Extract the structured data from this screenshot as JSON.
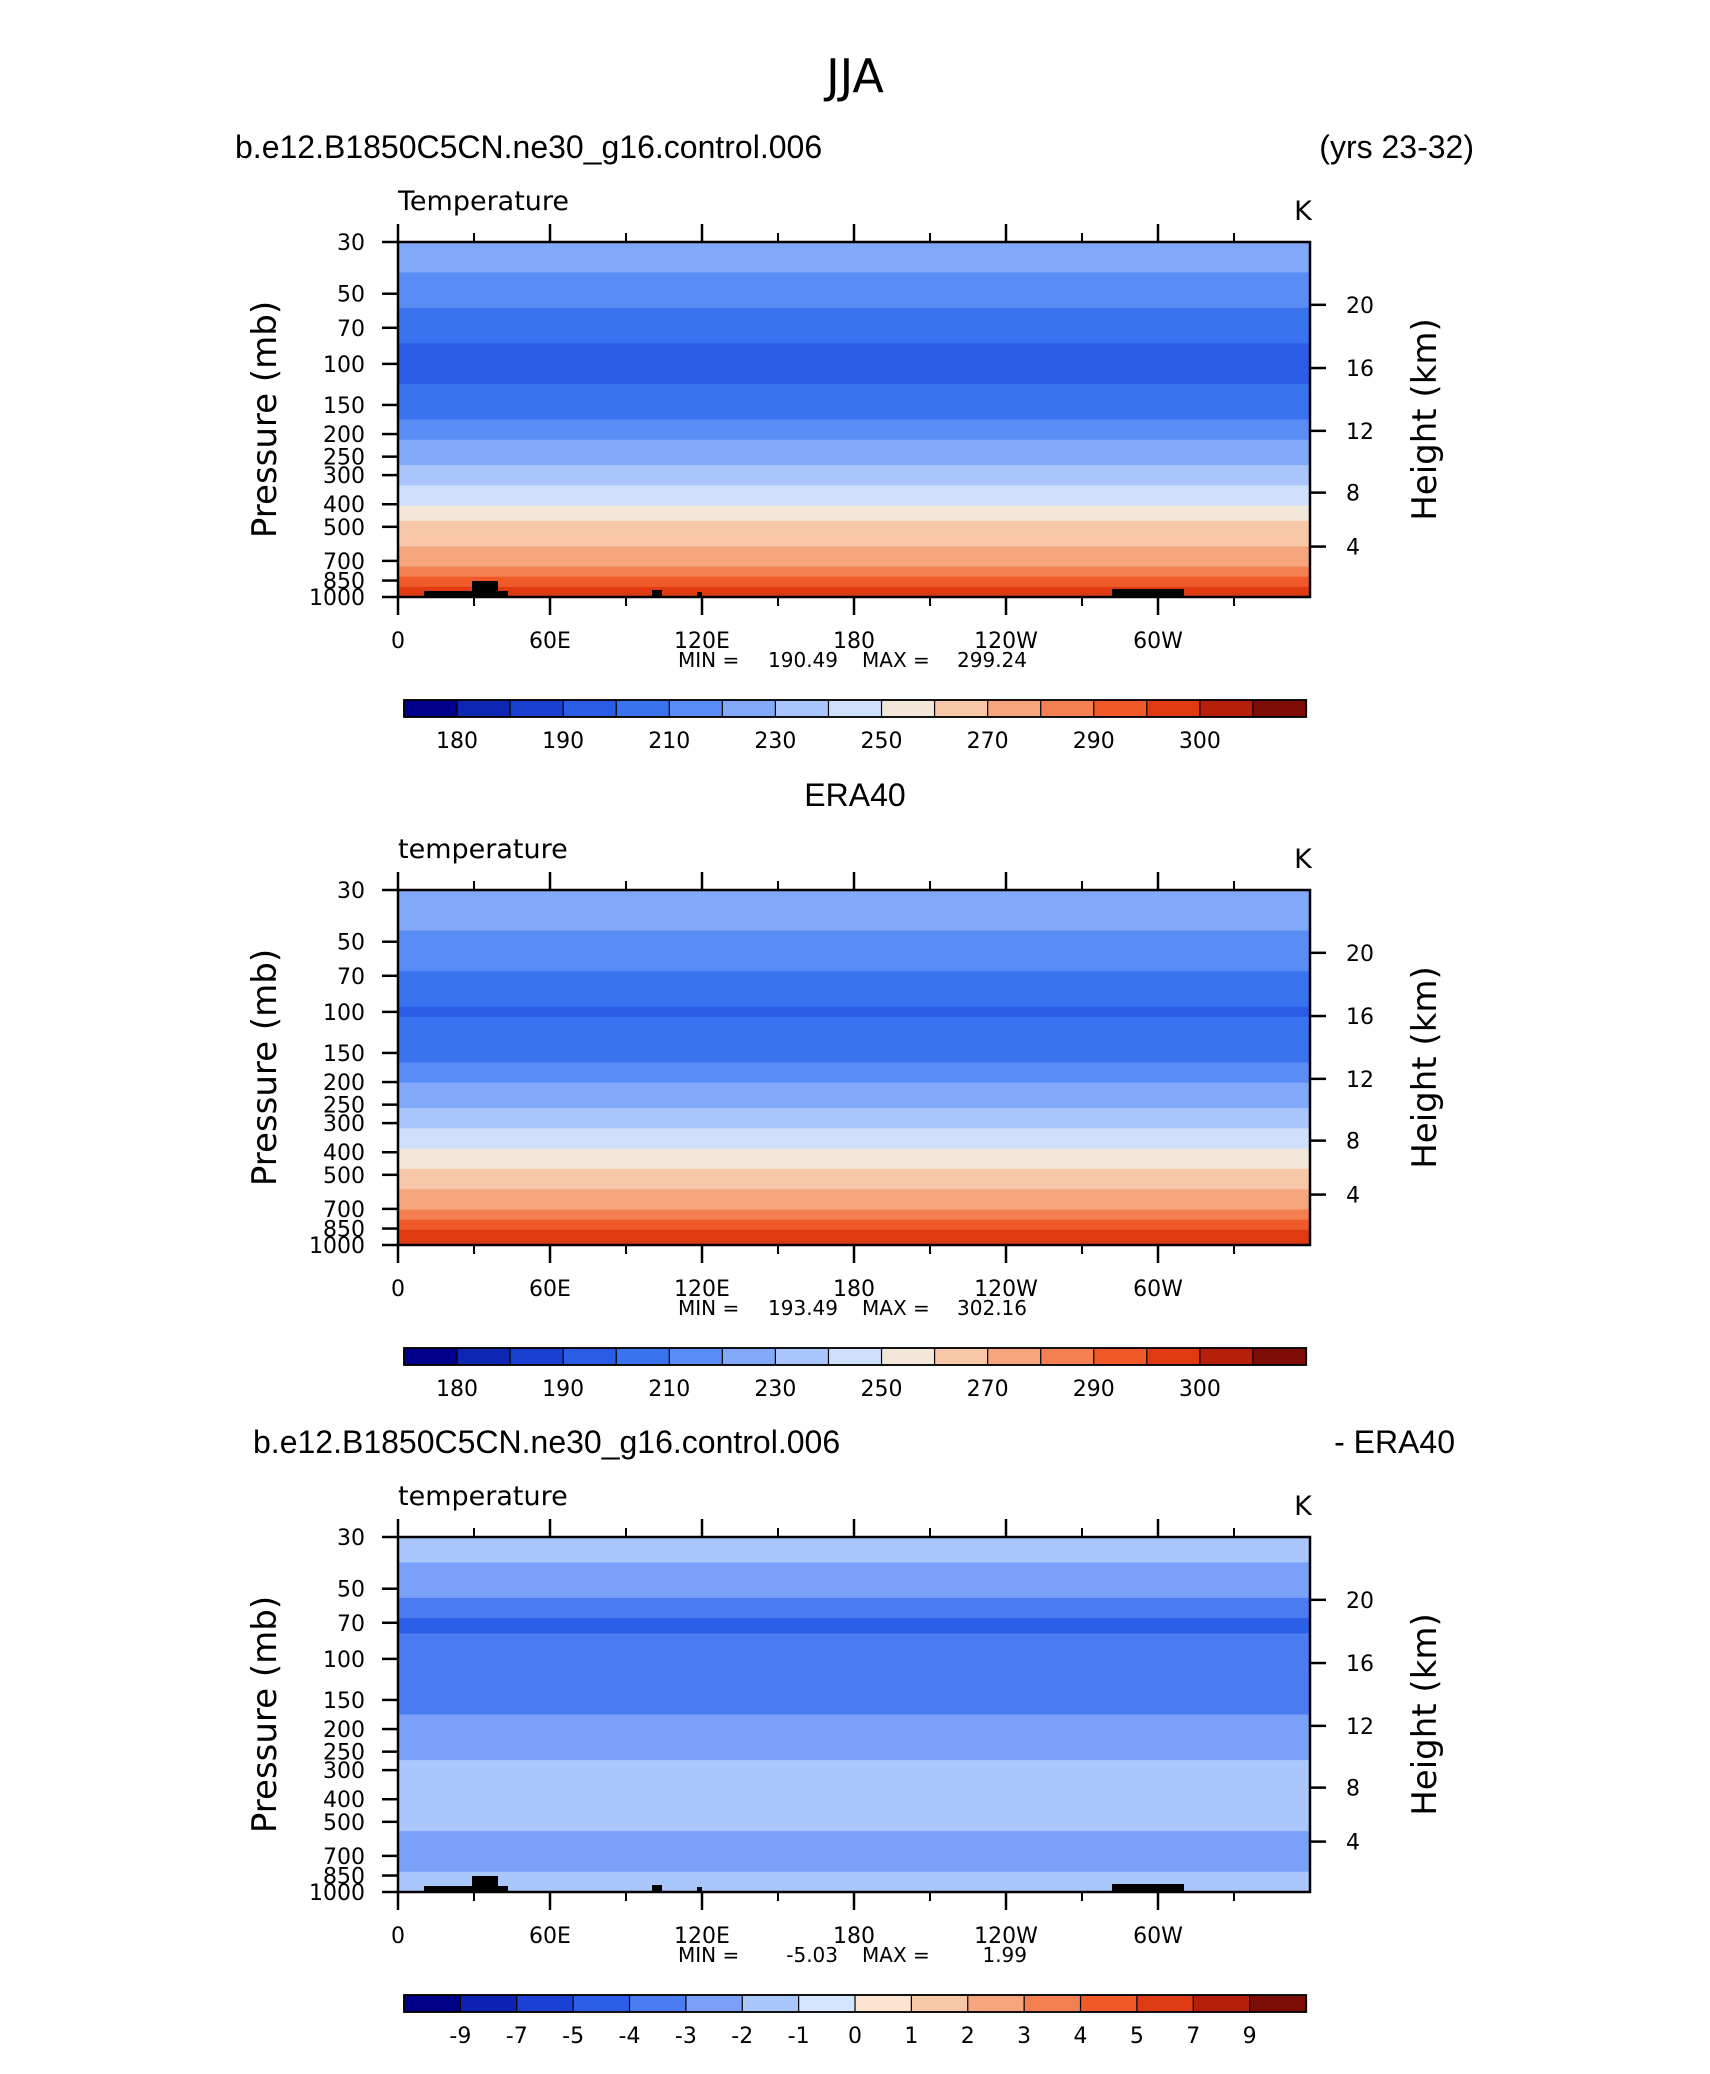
{
  "figure": {
    "title": "JJA"
  },
  "colors": {
    "temperature_levels": [
      "#00008c",
      "#0d26b4",
      "#1a40d2",
      "#2a5ce6",
      "#3a73f0",
      "#5a8cf5",
      "#82a9f9",
      "#a9c5fb",
      "#cfe0fc",
      "#f3e7d9",
      "#f8c7a7",
      "#f6a67f",
      "#f47f50",
      "#f05a28",
      "#e03a13",
      "#b61f0a",
      "#7f0c06"
    ],
    "difference_levels": [
      "#000088",
      "#0b22b3",
      "#1a40d4",
      "#2c5fe8",
      "#4b7cf2",
      "#7aa0f8",
      "#aac7fc",
      "#d4e6fd",
      "#fbe4d1",
      "#f8c7a7",
      "#f6a67f",
      "#f47f50",
      "#ef5a28",
      "#de3a13",
      "#b31f0a",
      "#7c0c06"
    ]
  },
  "panels": [
    {
      "left_title": "b.e12.B1850C5CN.ne30_g16.control.006",
      "right_title": "(yrs 23-32)",
      "center_title": "",
      "field_label": "Temperature",
      "units": "K",
      "ylabel_left": "Pressure  (mb)",
      "ylabel_right": "Height  (km)",
      "min_label": "MIN =",
      "min_value": "190.49",
      "max_label": "MAX =",
      "max_value": "299.24",
      "colorbar_labels": [
        "180",
        "190",
        "210",
        "230",
        "250",
        "270",
        "290",
        "300"
      ]
    },
    {
      "left_title": "",
      "right_title": "",
      "center_title": "ERA40",
      "field_label": "temperature",
      "units": "K",
      "ylabel_left": "Pressure  (mb)",
      "ylabel_right": "Height  (km)",
      "min_label": "MIN =",
      "min_value": "193.49",
      "max_label": "MAX =",
      "max_value": "302.16",
      "colorbar_labels": [
        "180",
        "190",
        "210",
        "230",
        "250",
        "270",
        "290",
        "300"
      ]
    },
    {
      "left_title": "b.e12.B1850C5CN.ne30_g16.control.006",
      "right_title": "- ERA40",
      "center_title": "",
      "field_label": "temperature",
      "units": "K",
      "ylabel_left": "Pressure  (mb)",
      "ylabel_right": "Height  (km)",
      "min_label": "MIN =",
      "min_value": "-5.03",
      "max_label": "MAX =",
      "max_value": "1.99",
      "colorbar_labels": [
        "-9",
        "-7",
        "-5",
        "-4",
        "-3",
        "-2",
        "-1",
        "0",
        "1",
        "2",
        "3",
        "4",
        "5",
        "7",
        "9"
      ]
    }
  ],
  "chart_data": [
    {
      "type": "heatmap",
      "title": "Temperature",
      "xlabel": "",
      "ylabel": "Pressure  (mb)",
      "x_ticks": [
        "0",
        "60E",
        "120E",
        "180",
        "120W",
        "60W"
      ],
      "x_tick_values": [
        0,
        60,
        120,
        180,
        240,
        300
      ],
      "xlim": [
        0,
        360
      ],
      "y_ticks": [
        30,
        50,
        70,
        100,
        150,
        200,
        250,
        300,
        400,
        500,
        700,
        850,
        1000
      ],
      "ylim": [
        1000,
        30
      ],
      "y_scale": "log",
      "y2_ticks": [
        20,
        16,
        12,
        8,
        4
      ],
      "y2_label": "Height  (km)",
      "min": 190.49,
      "max": 299.24,
      "contour_levels": [
        175,
        180,
        185,
        190,
        200,
        210,
        220,
        230,
        240,
        250,
        260,
        270,
        280,
        285,
        290,
        295,
        300
      ],
      "approx_zonal_mean_profile": [
        {
          "pressure": 30,
          "value": 228
        },
        {
          "pressure": 50,
          "value": 215
        },
        {
          "pressure": 70,
          "value": 203
        },
        {
          "pressure": 100,
          "value": 196
        },
        {
          "pressure": 150,
          "value": 205
        },
        {
          "pressure": 200,
          "value": 217
        },
        {
          "pressure": 250,
          "value": 227
        },
        {
          "pressure": 300,
          "value": 236
        },
        {
          "pressure": 400,
          "value": 250
        },
        {
          "pressure": 500,
          "value": 262
        },
        {
          "pressure": 700,
          "value": 277
        },
        {
          "pressure": 850,
          "value": 287
        },
        {
          "pressure": 1000,
          "value": 293
        }
      ]
    },
    {
      "type": "heatmap",
      "title": "temperature",
      "xlabel": "",
      "ylabel": "Pressure  (mb)",
      "x_ticks": [
        "0",
        "60E",
        "120E",
        "180",
        "120W",
        "60W"
      ],
      "x_tick_values": [
        0,
        60,
        120,
        180,
        240,
        300
      ],
      "xlim": [
        0,
        360
      ],
      "y_ticks": [
        30,
        50,
        70,
        100,
        150,
        200,
        250,
        300,
        400,
        500,
        700,
        850,
        1000
      ],
      "ylim": [
        1000,
        30
      ],
      "y_scale": "log",
      "y2_ticks": [
        20,
        16,
        12,
        8,
        4
      ],
      "y2_label": "Height  (km)",
      "min": 193.49,
      "max": 302.16,
      "contour_levels": [
        175,
        180,
        185,
        190,
        200,
        210,
        220,
        230,
        240,
        250,
        260,
        270,
        280,
        285,
        290,
        295,
        300
      ],
      "approx_zonal_mean_profile": [
        {
          "pressure": 30,
          "value": 229
        },
        {
          "pressure": 50,
          "value": 218
        },
        {
          "pressure": 70,
          "value": 208
        },
        {
          "pressure": 100,
          "value": 199
        },
        {
          "pressure": 150,
          "value": 207
        },
        {
          "pressure": 200,
          "value": 219
        },
        {
          "pressure": 250,
          "value": 229
        },
        {
          "pressure": 300,
          "value": 238
        },
        {
          "pressure": 400,
          "value": 252
        },
        {
          "pressure": 500,
          "value": 264
        },
        {
          "pressure": 700,
          "value": 279
        },
        {
          "pressure": 850,
          "value": 289
        },
        {
          "pressure": 1000,
          "value": 296
        }
      ]
    },
    {
      "type": "heatmap",
      "title": "temperature",
      "xlabel": "",
      "ylabel": "Pressure  (mb)",
      "x_ticks": [
        "0",
        "60E",
        "120E",
        "180",
        "120W",
        "60W"
      ],
      "x_tick_values": [
        0,
        60,
        120,
        180,
        240,
        300
      ],
      "xlim": [
        0,
        360
      ],
      "y_ticks": [
        30,
        50,
        70,
        100,
        150,
        200,
        250,
        300,
        400,
        500,
        700,
        850,
        1000
      ],
      "ylim": [
        1000,
        30
      ],
      "y_scale": "log",
      "y2_ticks": [
        20,
        16,
        12,
        8,
        4
      ],
      "y2_label": "Height  (km)",
      "min": -5.03,
      "max": 1.99,
      "contour_levels": [
        -10,
        -9,
        -7,
        -5,
        -4,
        -3,
        -2,
        -1,
        0,
        1,
        2,
        3,
        4,
        5,
        7,
        9,
        10
      ],
      "approx_zonal_mean_profile": [
        {
          "pressure": 30,
          "value": -1.5
        },
        {
          "pressure": 50,
          "value": -2.5
        },
        {
          "pressure": 70,
          "value": -4.2
        },
        {
          "pressure": 100,
          "value": -3.5
        },
        {
          "pressure": 150,
          "value": -3.3
        },
        {
          "pressure": 200,
          "value": -2.6
        },
        {
          "pressure": 300,
          "value": -1.8
        },
        {
          "pressure": 400,
          "value": -1.5
        },
        {
          "pressure": 500,
          "value": -1.8
        },
        {
          "pressure": 700,
          "value": -2.5
        },
        {
          "pressure": 850,
          "value": -1.8
        },
        {
          "pressure": 1000,
          "value": -1.5
        }
      ]
    }
  ]
}
